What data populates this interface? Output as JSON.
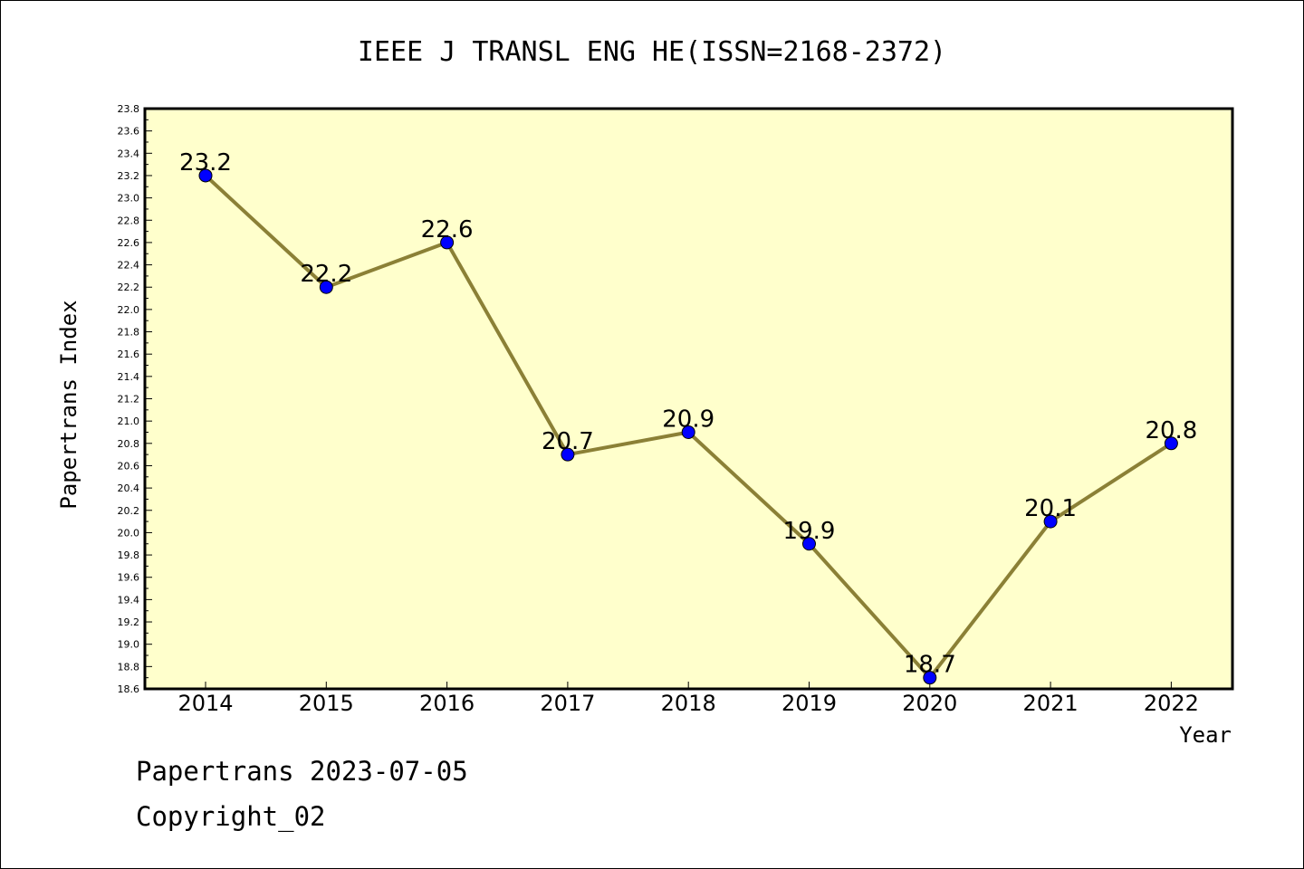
{
  "chart_data": {
    "type": "line",
    "title": "IEEE J TRANSL ENG HE(ISSN=2168-2372)",
    "xlabel": "Year",
    "ylabel": "Papertrans Index",
    "categories": [
      "2014",
      "2015",
      "2016",
      "2017",
      "2018",
      "2019",
      "2020",
      "2021",
      "2022"
    ],
    "values": [
      23.2,
      22.2,
      22.6,
      20.7,
      20.9,
      19.9,
      18.7,
      20.1,
      20.8
    ],
    "data_labels": [
      "23.2",
      "22.2",
      "22.6",
      "20.7",
      "20.9",
      "19.9",
      "18.7",
      "20.1",
      "20.8"
    ],
    "ylim": [
      18.6,
      23.8
    ],
    "yticks": [
      "18.6",
      "18.8",
      "19.0",
      "19.2",
      "19.4",
      "19.6",
      "19.8",
      "20.0",
      "20.2",
      "20.4",
      "20.6",
      "20.8",
      "21.0",
      "21.2",
      "21.4",
      "21.6",
      "21.8",
      "22.0",
      "22.2",
      "22.4",
      "22.6",
      "22.8",
      "23.0",
      "23.2",
      "23.4",
      "23.6",
      "23.8"
    ],
    "grid": false,
    "colors": {
      "plot_background": "#ffffcc",
      "line": "#8b8036",
      "marker": "#0000ff"
    }
  },
  "footer": {
    "line1": "Papertrans 2023-07-05",
    "line2": "Copyright_02"
  }
}
